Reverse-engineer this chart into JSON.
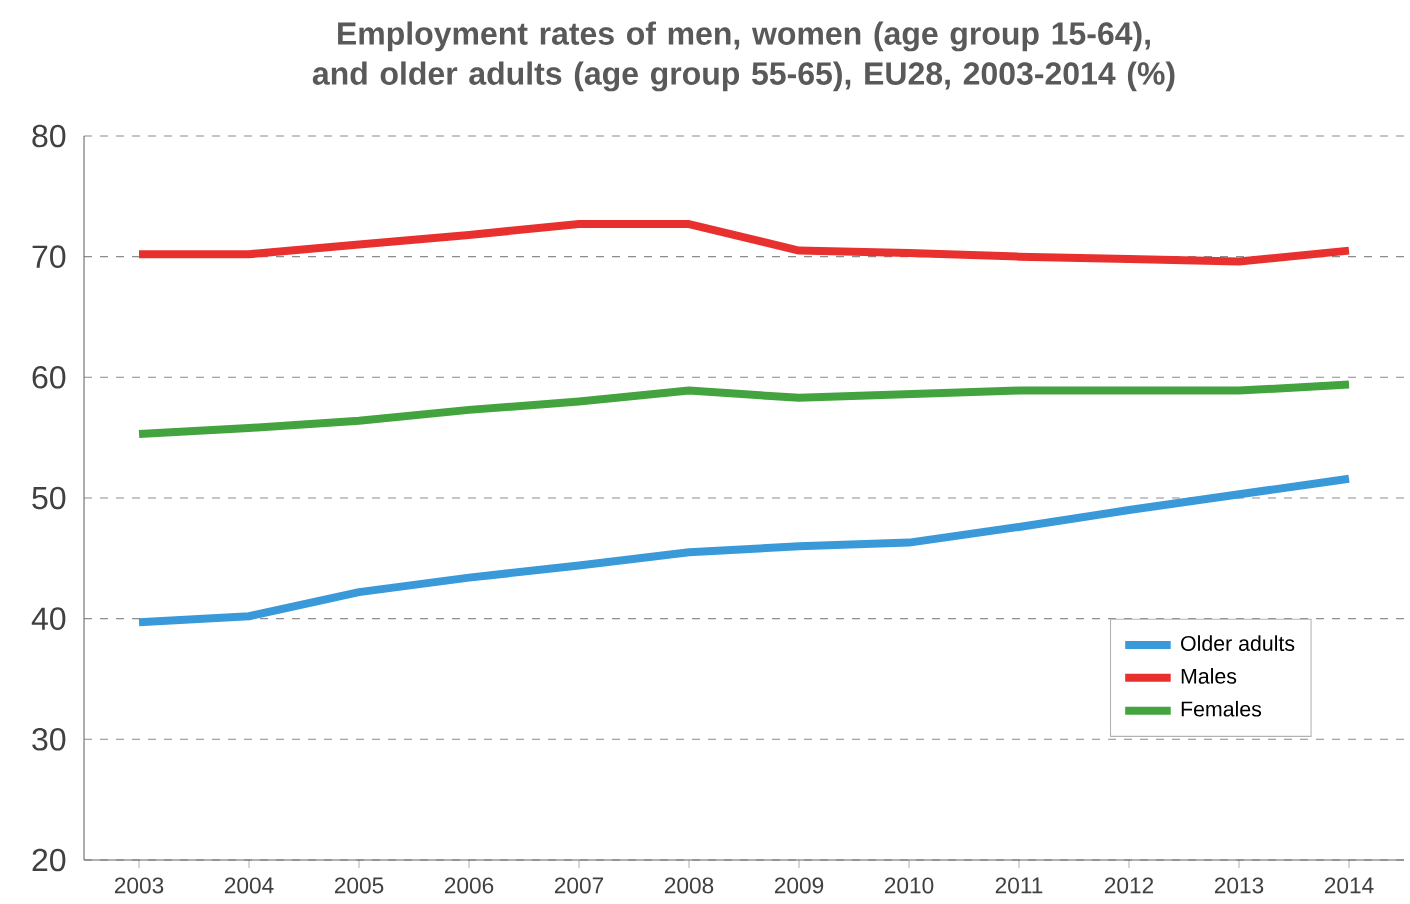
{
  "chart_data": {
    "type": "line",
    "title": "Employment rates of men, women (age group 15-64), and older adults (age group 55-65), EU28, 2003-2014 (%)",
    "categories": [
      "2003",
      "2004",
      "2005",
      "2006",
      "2007",
      "2008",
      "2009",
      "2010",
      "2011",
      "2012",
      "2013",
      "2014"
    ],
    "series": [
      {
        "name": "Older adults",
        "color": "#3a9ad9",
        "values": [
          39.7,
          40.2,
          42.2,
          43.4,
          44.4,
          45.5,
          46.0,
          46.3,
          47.6,
          49.0,
          50.3,
          51.6
        ]
      },
      {
        "name": "Males",
        "color": "#e8312f",
        "values": [
          70.2,
          70.2,
          71.0,
          71.8,
          72.7,
          72.7,
          70.5,
          70.3,
          70.0,
          69.8,
          69.6,
          70.5
        ]
      },
      {
        "name": "Females",
        "color": "#43a33e",
        "values": [
          55.3,
          55.8,
          56.4,
          57.3,
          58.0,
          58.9,
          58.3,
          58.6,
          58.9,
          58.9,
          58.9,
          59.4
        ]
      }
    ],
    "ylim": [
      20,
      80
    ],
    "yticks": [
      20,
      30,
      40,
      50,
      60,
      70,
      80
    ],
    "grid": "y",
    "legend": "bottom right",
    "marker": "none",
    "line_style": "solid"
  }
}
